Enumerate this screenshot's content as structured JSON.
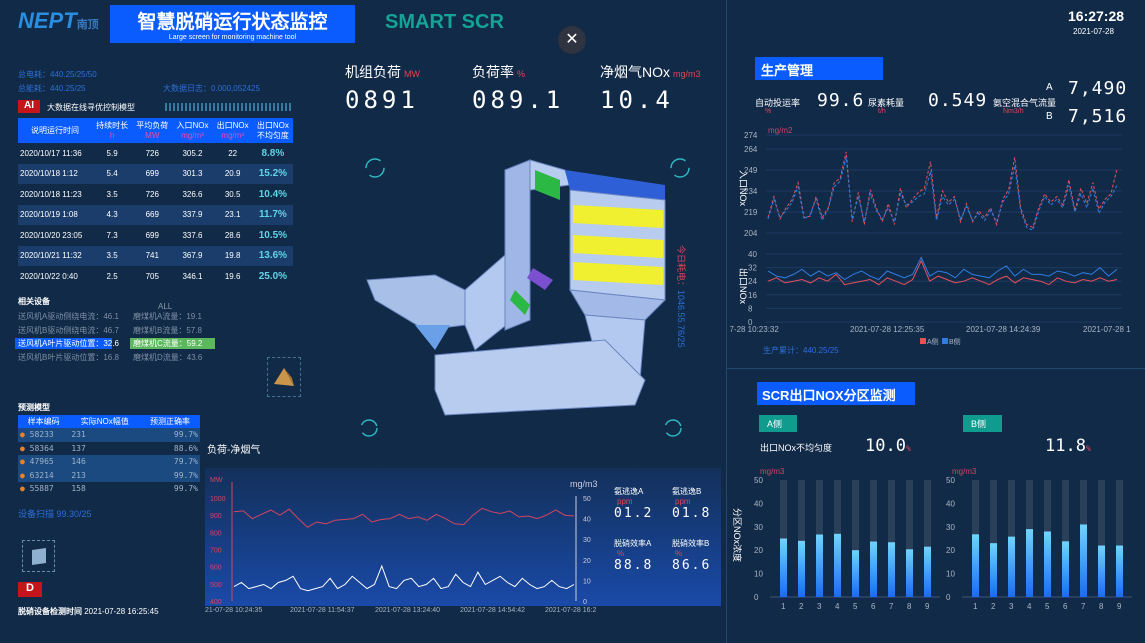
{
  "header": {
    "logo": "NEPT",
    "logo_sub": "南顶",
    "title": "智慧脱硝运行状态监控",
    "subtitle": "Large screen for monitoring machine tool",
    "smart": "SMART SCR",
    "time": "16:27:28",
    "date": "2021-07-28",
    "close_icon": "close-icon"
  },
  "left": {
    "total_power": "总电耗：440.25/25/50",
    "total_energy": "总能耗：440.25/25",
    "bigdata": "大数据日志：0.000,052425",
    "ai_badge": "AI",
    "ai_title": "大数据在线寻优控制模型",
    "table": {
      "headers": [
        [
          "说明运行时间",
          ""
        ],
        [
          "持续时长",
          "h"
        ],
        [
          "平均负荷",
          "MW"
        ],
        [
          "入口NOx",
          "mg/m³"
        ],
        [
          "出口NOx",
          "mg/m³"
        ],
        [
          "出口NOx",
          "不均匀度"
        ]
      ],
      "rows": [
        [
          "2020/10/17 11:36",
          "5.9",
          "726",
          "305.2",
          "22",
          "8.8%"
        ],
        [
          "2020/10/18 1:12",
          "5.4",
          "699",
          "301.3",
          "20.9",
          "15.2%"
        ],
        [
          "2020/10/18 11:23",
          "3.5",
          "726",
          "326.6",
          "30.5",
          "10.4%"
        ],
        [
          "2020/10/19 1:08",
          "4.3",
          "669",
          "337.9",
          "23.1",
          "11.7%"
        ],
        [
          "2020/10/20 23:05",
          "7.3",
          "699",
          "337.6",
          "28.6",
          "10.5%"
        ],
        [
          "2020/10/21 11:32",
          "3.5",
          "741",
          "367.9",
          "19.8",
          "13.6%"
        ],
        [
          "2020/10/22 0:40",
          "2.5",
          "705",
          "346.1",
          "19.6",
          "25.0%"
        ]
      ]
    },
    "equip_title": "相关设备",
    "equip_all": "ALL",
    "equip_left": [
      "送风机A驱动侧绕电流：46.1",
      "送风机B驱动侧绕电流：46.7",
      "送风机A叶片驱动位置：32.6",
      "送风机B叶片驱动位置：16.8"
    ],
    "equip_right": [
      "磨煤机A流量：19.1",
      "磨煤机B流量：57.8",
      "磨煤机C流量：59.2",
      "磨煤机D流量：43.6"
    ],
    "pred_title": "预测模型",
    "pred": {
      "headers": [
        "样本编码",
        "实际NOx幅值",
        "预测正确率"
      ],
      "rows": [
        [
          "58233",
          "231",
          "99.7%"
        ],
        [
          "58364",
          "137",
          "88.6%"
        ],
        [
          "47965",
          "146",
          "79.7%"
        ],
        [
          "63214",
          "213",
          "99.7%"
        ],
        [
          "55887",
          "158",
          "99.7%"
        ]
      ]
    },
    "scan": "设备扫描 99.30/25",
    "d_badge": "D",
    "detect_label": "脱硝设备检测时间",
    "detect_time": "2021-07-28 16:25:45"
  },
  "center": {
    "kpis": [
      {
        "label": "机组负荷",
        "unit": "MW",
        "value": "0891"
      },
      {
        "label": "负荷率",
        "unit": "%",
        "value": "089.1"
      },
      {
        "label": "净烟气NOx",
        "unit": "mg/m3",
        "value": "10.4"
      }
    ],
    "today_label": "今日耗电：",
    "today_value": "1046.55.76/25",
    "chart_title": "负荷-净烟气",
    "stats": [
      {
        "label": "氨逃逸A",
        "unit": "ppm",
        "value": "01.2"
      },
      {
        "label": "氨逃逸B",
        "unit": "ppm",
        "value": "01.8"
      },
      {
        "label": "脱硝效率A",
        "unit": "%",
        "value": "88.8"
      },
      {
        "label": "脱硝效率B",
        "unit": "%",
        "value": "86.6"
      }
    ]
  },
  "right": {
    "title": "生产管理",
    "stats": [
      {
        "label": "自动投运率",
        "unit": "%",
        "value": "99.6"
      },
      {
        "label": "尿素耗量",
        "unit": "t/h",
        "value": "0.549"
      },
      {
        "label": "氨空混合气流量",
        "unit": "Nm3/h"
      }
    ],
    "flowA_label": "A",
    "flowA": "7,490",
    "flowB_label": "B",
    "flowB": "7,516",
    "cumulative": "生产累计：440.25/25",
    "scr_title": "SCR出口NOX分区监测",
    "tagA": "A侧",
    "tagB": "B侧",
    "uneven_label": "出口NOx不均匀度",
    "unevenA": "10.0",
    "unevenB": "11.8",
    "uneven_unit": "%"
  },
  "chart_data": [
    {
      "type": "line",
      "title": "负荷-净烟气",
      "x_ticks": [
        "21-07-28 10:24:35",
        "2021-07-28 11:54:37",
        "2021-07-28 13:24:40",
        "2021-07-28 14:54:42",
        "2021-07-28 16:2"
      ],
      "ylabel_left": "MW",
      "ylim_left": [
        400,
        1000
      ],
      "yticks_left": [
        400,
        500,
        600,
        700,
        800,
        900,
        1000
      ],
      "ylabel_right": "mg/m3",
      "ylim_right": [
        0,
        50
      ],
      "yticks_right": [
        0,
        10,
        20,
        30,
        40,
        50
      ],
      "series": [
        {
          "axis": "left",
          "color": "#d2455f",
          "values": [
            920,
            925,
            880,
            905,
            930,
            900,
            935,
            880,
            830,
            860,
            850,
            870,
            875,
            880,
            905,
            860,
            875,
            880,
            905,
            880,
            890,
            870,
            905,
            880,
            850,
            845,
            900,
            940,
            920,
            910,
            925,
            890,
            895,
            880,
            900,
            930,
            900,
            895
          ]
        },
        {
          "axis": "right",
          "color": "#ffffff",
          "values": [
            7,
            9,
            6,
            7,
            8,
            6,
            9,
            10,
            12,
            6,
            5,
            6,
            7,
            11,
            6,
            8,
            12,
            9,
            6,
            8,
            17,
            7,
            6,
            10,
            11,
            7,
            8,
            11,
            6,
            7,
            13,
            9,
            7,
            14,
            8,
            10,
            12,
            9,
            7,
            11,
            8,
            6,
            7,
            10,
            7,
            6,
            8
          ]
        }
      ]
    },
    {
      "type": "line",
      "ylabel": "入口NOx",
      "unit": "mg/m2",
      "ylim": [
        204,
        274
      ],
      "yticks": [
        204,
        219,
        234,
        249,
        264,
        274
      ],
      "x_ticks": [
        "07-28 10:23:32",
        "2021-07-28 12:25:35",
        "2021-07-28 14:24:39",
        "2021-07-28 1"
      ],
      "series": [
        {
          "name": "A侧",
          "color": "#e8505b",
          "values": [
            215,
            230,
            214,
            222,
            228,
            240,
            215,
            216,
            230,
            215,
            222,
            240,
            243,
            262,
            212,
            233,
            210,
            235,
            222,
            212,
            225,
            210,
            236,
            222,
            228,
            233,
            236,
            255,
            215,
            234,
            226,
            230,
            212,
            225,
            212,
            220,
            215,
            222,
            210,
            228,
            235,
            258,
            222,
            210,
            208,
            222,
            232,
            226,
            230,
            224,
            242,
            220,
            236,
            225,
            240,
            221,
            228,
            232,
            250
          ]
        },
        {
          "name": "B侧",
          "color": "#2f7de0",
          "values": [
            214,
            228,
            215,
            220,
            226,
            237,
            214,
            217,
            228,
            213,
            221,
            237,
            241,
            258,
            214,
            230,
            212,
            232,
            220,
            214,
            222,
            212,
            232,
            224,
            226,
            230,
            232,
            248,
            213,
            230,
            224,
            228,
            214,
            223,
            213,
            218,
            213,
            220,
            212,
            226,
            232,
            252,
            220,
            208,
            206,
            220,
            230,
            224,
            228,
            222,
            238,
            219,
            232,
            222,
            236,
            218,
            226,
            230,
            238
          ]
        }
      ]
    },
    {
      "type": "line",
      "ylabel": "出口NOx",
      "ylim": [
        0,
        40
      ],
      "yticks": [
        0,
        8,
        16,
        24,
        32,
        40
      ],
      "series": [
        {
          "name": "A侧",
          "color": "#e8505b",
          "values": [
            24,
            26,
            23,
            24,
            25,
            23,
            26,
            24,
            28,
            22,
            23,
            24,
            25,
            22,
            26,
            24,
            22,
            25,
            36,
            24,
            27,
            25,
            23,
            24,
            26,
            24,
            22,
            25,
            27,
            23,
            26,
            25,
            24,
            22,
            26,
            24,
            23,
            25,
            24,
            26,
            24,
            25
          ]
        },
        {
          "name": "B侧",
          "color": "#2f7de0",
          "values": [
            30,
            27,
            26,
            28,
            31,
            27,
            30,
            27,
            29,
            25,
            28,
            30,
            27,
            25,
            30,
            28,
            26,
            28,
            38,
            27,
            30,
            29,
            26,
            31,
            28,
            27,
            26,
            30,
            33,
            27,
            31,
            28,
            28,
            27,
            30,
            29,
            27,
            29,
            28,
            32,
            27,
            31
          ]
        }
      ]
    },
    {
      "type": "bar",
      "title": "A侧",
      "ylabel": "分区NOx浓度",
      "unit": "mg/m3",
      "ylim": [
        0,
        50
      ],
      "yticks": [
        0,
        10,
        20,
        30,
        40,
        50
      ],
      "categories": [
        "1",
        "2",
        "3",
        "4",
        "5",
        "6",
        "7",
        "8",
        "9"
      ],
      "values": [
        25,
        24,
        26.7,
        27,
        20,
        23.7,
        23.4,
        20.4,
        21.5
      ]
    },
    {
      "type": "bar",
      "title": "B侧",
      "unit": "mg/m3",
      "ylim": [
        0,
        50
      ],
      "yticks": [
        0,
        10,
        20,
        30,
        40,
        50
      ],
      "categories": [
        "1",
        "2",
        "3",
        "4",
        "5",
        "6",
        "7",
        "8",
        "9"
      ],
      "values": [
        26.8,
        23,
        25.8,
        29,
        28,
        23.8,
        31,
        22,
        22
      ]
    }
  ]
}
